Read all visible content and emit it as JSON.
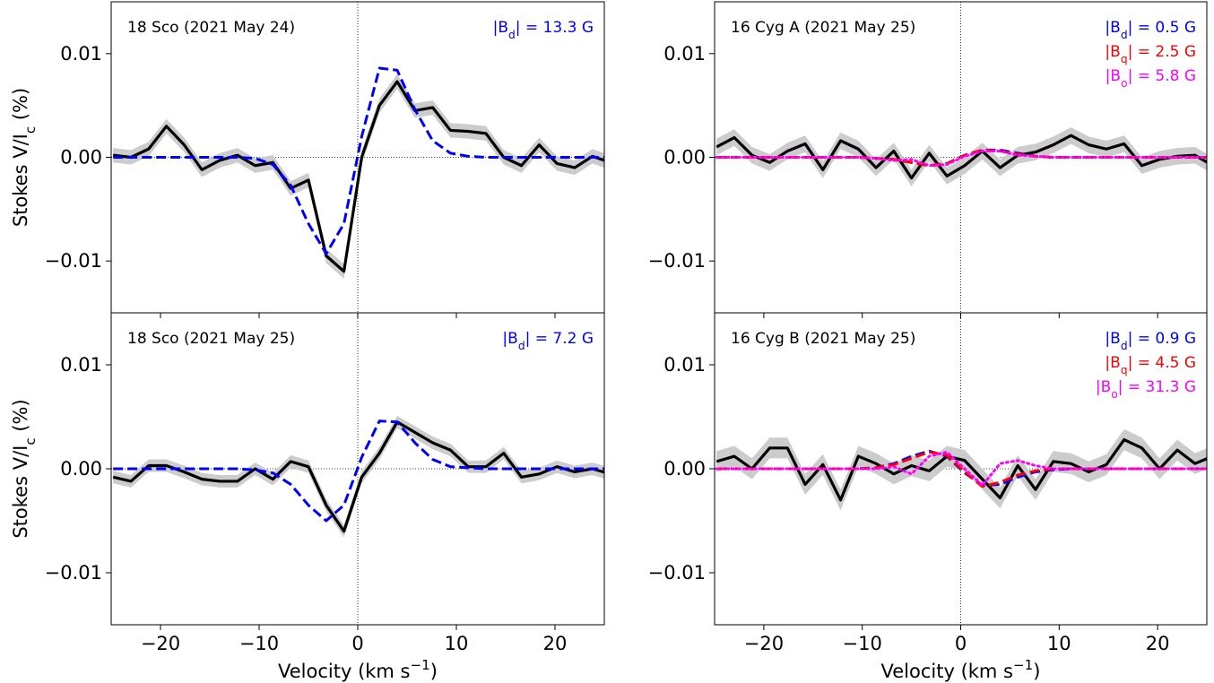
{
  "chart_data": [
    {
      "type": "line",
      "title": "18 Sco (2021 May 24)",
      "ylabel": [
        "Stokes V/I",
        "c",
        " (%)"
      ],
      "x": [
        -24.8,
        -23,
        -21.2,
        -19.4,
        -17.6,
        -15.8,
        -14,
        -12.2,
        -10.4,
        -8.6,
        -6.8,
        -5,
        -3.2,
        -1.4,
        0.4,
        2.2,
        4,
        5.8,
        7.6,
        9.4,
        11.2,
        13,
        14.8,
        16.6,
        18.4,
        20.2,
        22,
        23.8,
        25.6
      ],
      "series": [
        {
          "color": "#000000",
          "style": "solid",
          "error": 0.0007,
          "values": [
            0.0002,
            0.0,
            0.0008,
            0.003,
            0.0012,
            -0.0012,
            -0.0003,
            0.0002,
            -0.0008,
            -0.0005,
            -0.003,
            -0.0022,
            -0.0095,
            -0.011,
            0.0,
            0.005,
            0.0073,
            0.0045,
            0.0048,
            0.0026,
            0.0025,
            0.0023,
            0.0,
            -0.0008,
            0.0012,
            -0.0006,
            -0.001,
            0.0001,
            -0.0005
          ]
        },
        {
          "color": "#0000ff",
          "style": "dashed",
          "label": [
            "|B",
            "d",
            "| = 13.3 G"
          ],
          "values": [
            0,
            0,
            0,
            0,
            0,
            0,
            0,
            0,
            -0.0001,
            -0.0007,
            -0.0027,
            -0.0064,
            -0.0093,
            -0.0064,
            0.002,
            0.0086,
            0.0084,
            0.0046,
            0.0016,
            0.0004,
            0.0001,
            0,
            0,
            0,
            0,
            0,
            0,
            0,
            0
          ]
        }
      ],
      "xlim": [
        -25,
        25
      ],
      "ylim": [
        -0.015,
        0.015
      ],
      "xticks": [
        {
          "value": -20,
          "label": "−20"
        },
        {
          "value": -10,
          "label": "−10"
        },
        0,
        10,
        20
      ],
      "yticks": [
        {
          "value": -0.01,
          "label": "−0.01"
        },
        {
          "value": 0,
          "label": "0.00"
        },
        0.01
      ]
    },
    {
      "type": "line",
      "title": "16 Cyg A (2021 May 25)",
      "x": [
        -24.8,
        -23,
        -21.2,
        -19.4,
        -17.6,
        -15.8,
        -14,
        -12.2,
        -10.4,
        -8.6,
        -6.8,
        -5,
        -3.2,
        -1.4,
        0.4,
        2.2,
        4,
        5.8,
        7.6,
        9.4,
        11.2,
        13,
        14.8,
        16.6,
        18.4,
        20.2,
        22,
        23.8,
        25.6
      ],
      "series": [
        {
          "color": "#000000",
          "style": "solid",
          "error": 0.0008,
          "values": [
            0.001,
            0.0019,
            0.0002,
            -0.0005,
            0.0006,
            0.0013,
            -0.0012,
            0.0016,
            0.0008,
            -0.001,
            0.0006,
            -0.002,
            0.0004,
            -0.0018,
            -0.0008,
            0.0006,
            -0.001,
            0.0002,
            0.0005,
            0.0012,
            0.0021,
            0.0012,
            0.0008,
            0.0013,
            -0.0008,
            -0.0002,
            0.0001,
            0.0002,
            -0.0008
          ]
        },
        {
          "color": "#0000ff",
          "style": "dashed",
          "label": [
            "|B",
            "d",
            "| = 0.5 G"
          ],
          "values": [
            0,
            0,
            0,
            0,
            0,
            0,
            0,
            0,
            0,
            -0.0001,
            -0.0002,
            -0.0005,
            -0.0008,
            -0.0006,
            0.0002,
            0.0007,
            0.0007,
            0.0004,
            0.0001,
            0,
            0,
            0,
            0,
            0,
            0,
            0,
            0,
            0,
            0
          ]
        },
        {
          "color": "#ff0000",
          "style": "dashed",
          "label": [
            "|B",
            "q",
            "| = 2.5 G"
          ],
          "values": [
            0,
            0,
            0,
            0,
            0,
            0,
            0,
            0,
            0,
            -0.0001,
            -0.0002,
            -0.0005,
            -0.0008,
            -0.0006,
            0.0002,
            0.0007,
            0.0006,
            0.0003,
            0.0001,
            0,
            0,
            0,
            0,
            0,
            0,
            0,
            0,
            0,
            0
          ]
        },
        {
          "color": "#ff00ff",
          "style": "dotted",
          "label": [
            "|B",
            "o",
            "| = 5.8 G"
          ],
          "values": [
            0,
            0,
            0,
            0,
            0,
            0,
            0,
            0,
            0,
            -0.0001,
            -0.0003,
            -0.0002,
            -0.0008,
            -0.0007,
            0.0001,
            0.0006,
            0.0006,
            0.0002,
            0.0001,
            0,
            0,
            0,
            0,
            0,
            0,
            0,
            0,
            0,
            0
          ]
        }
      ],
      "xlim": [
        -25,
        25
      ],
      "ylim": [
        -0.015,
        0.015
      ],
      "xticks": [
        {
          "value": -20,
          "label": "−20"
        },
        {
          "value": -10,
          "label": "−10"
        },
        0,
        10,
        20
      ],
      "yticks": [
        {
          "value": -0.01,
          "label": "−0.01"
        },
        {
          "value": 0,
          "label": "0.00"
        },
        0.01
      ]
    },
    {
      "type": "line",
      "title": "18 Sco (2021 May 25)",
      "ylabel": [
        "Stokes V/I",
        "c",
        " (%)"
      ],
      "xlabel": [
        "Velocity (km s",
        "−1",
        ")"
      ],
      "x": [
        -24.8,
        -23,
        -21.2,
        -19.4,
        -17.6,
        -15.8,
        -14,
        -12.2,
        -10.4,
        -8.6,
        -6.8,
        -5,
        -3.2,
        -1.4,
        0.4,
        2.2,
        4,
        5.8,
        7.6,
        9.4,
        11.2,
        13,
        14.8,
        16.6,
        18.4,
        20.2,
        22,
        23.8,
        25.6
      ],
      "series": [
        {
          "color": "#000000",
          "style": "solid",
          "error": 0.0006,
          "values": [
            -0.0008,
            -0.0012,
            0.0003,
            0.0003,
            -0.0003,
            -0.001,
            -0.0012,
            -0.0012,
            0.0,
            -0.001,
            0.0007,
            0.0002,
            -0.0035,
            -0.006,
            -0.0008,
            0.0015,
            0.0045,
            0.0035,
            0.0025,
            0.0018,
            0.0002,
            0.0002,
            0.0015,
            -0.0008,
            -0.0005,
            0.0002,
            -0.0003,
            0.0,
            -0.0005
          ]
        },
        {
          "color": "#0000ff",
          "style": "dashed",
          "label": [
            "|B",
            "d",
            "| = 7.2 G"
          ],
          "values": [
            0,
            0,
            0,
            0,
            0,
            0,
            0,
            0,
            -0.0001,
            -0.0004,
            -0.0015,
            -0.0035,
            -0.005,
            -0.0035,
            0.0011,
            0.0046,
            0.0045,
            0.0025,
            0.0009,
            0.0002,
            0.0001,
            0,
            0,
            0,
            0,
            0,
            0,
            0,
            0
          ]
        }
      ],
      "xlim": [
        -25,
        25
      ],
      "ylim": [
        -0.015,
        0.015
      ],
      "xticks": [
        {
          "value": -20,
          "label": "−20"
        },
        {
          "value": -10,
          "label": "−10"
        },
        0,
        10,
        20
      ],
      "yticks": [
        {
          "value": -0.01,
          "label": "−0.01"
        },
        {
          "value": 0,
          "label": "0.00"
        },
        0.01
      ]
    },
    {
      "type": "line",
      "title": "16 Cyg B (2021 May 25)",
      "xlabel": [
        "Velocity (km s",
        "−1",
        ")"
      ],
      "x": [
        -24.8,
        -23,
        -21.2,
        -19.4,
        -17.6,
        -15.8,
        -14,
        -12.2,
        -10.4,
        -8.6,
        -6.8,
        -5,
        -3.2,
        -1.4,
        0.4,
        2.2,
        4,
        5.8,
        7.6,
        9.4,
        11.2,
        13,
        14.8,
        16.6,
        18.4,
        20.2,
        22,
        23.8,
        25.6
      ],
      "series": [
        {
          "color": "#000000",
          "style": "solid",
          "error": 0.001,
          "values": [
            0.0007,
            0.0012,
            0.0,
            0.002,
            0.002,
            -0.0015,
            0.0004,
            -0.003,
            0.0012,
            0.0005,
            -0.0005,
            0.0003,
            -0.0002,
            0.0012,
            0.0008,
            -0.001,
            -0.0028,
            0.0003,
            -0.002,
            0.0007,
            0.0005,
            -0.0003,
            0.0004,
            0.0028,
            0.002,
            0.0,
            0.0018,
            0.0005,
            0.0012
          ]
        },
        {
          "color": "#0000ff",
          "style": "dashed",
          "label": [
            "|B",
            "d",
            "| = 0.9 G"
          ],
          "values": [
            0,
            0,
            0,
            0,
            0,
            0,
            0,
            0,
            0,
            0.0001,
            0.0005,
            0.0012,
            0.0017,
            0.0012,
            -0.0004,
            -0.0016,
            -0.0015,
            -0.0008,
            -0.0003,
            -0.0001,
            0,
            0,
            0,
            0,
            0,
            0,
            0,
            0,
            0
          ]
        },
        {
          "color": "#ff0000",
          "style": "dashed",
          "label": [
            "|B",
            "q",
            "| = 4.5 G"
          ],
          "values": [
            0,
            0,
            0,
            0,
            0,
            0,
            0,
            0,
            0,
            0.0001,
            0.0004,
            0.001,
            0.0016,
            0.0013,
            -0.0003,
            -0.0017,
            -0.0013,
            -0.0006,
            -0.0002,
            0,
            0,
            0,
            0,
            0,
            0,
            0,
            0,
            0,
            0
          ]
        },
        {
          "color": "#ff00ff",
          "style": "dotted",
          "label": [
            "|B",
            "o",
            "| = 31.3 G"
          ],
          "values": [
            0,
            0,
            0,
            0,
            0,
            0,
            0,
            0,
            0,
            0,
            0.0002,
            -0.0005,
            0.0012,
            0.0016,
            0.0,
            -0.0016,
            0.0005,
            0.0008,
            0.0003,
            0,
            0,
            0,
            0,
            0,
            0,
            0,
            0,
            0,
            0
          ]
        }
      ],
      "xlim": [
        -25,
        25
      ],
      "ylim": [
        -0.015,
        0.015
      ],
      "xticks": [
        {
          "value": -20,
          "label": "−20"
        },
        {
          "value": -10,
          "label": "−10"
        },
        0,
        10,
        20
      ],
      "yticks": [
        {
          "value": -0.01,
          "label": "−0.01"
        },
        {
          "value": 0,
          "label": "0.00"
        },
        0.01
      ]
    }
  ]
}
